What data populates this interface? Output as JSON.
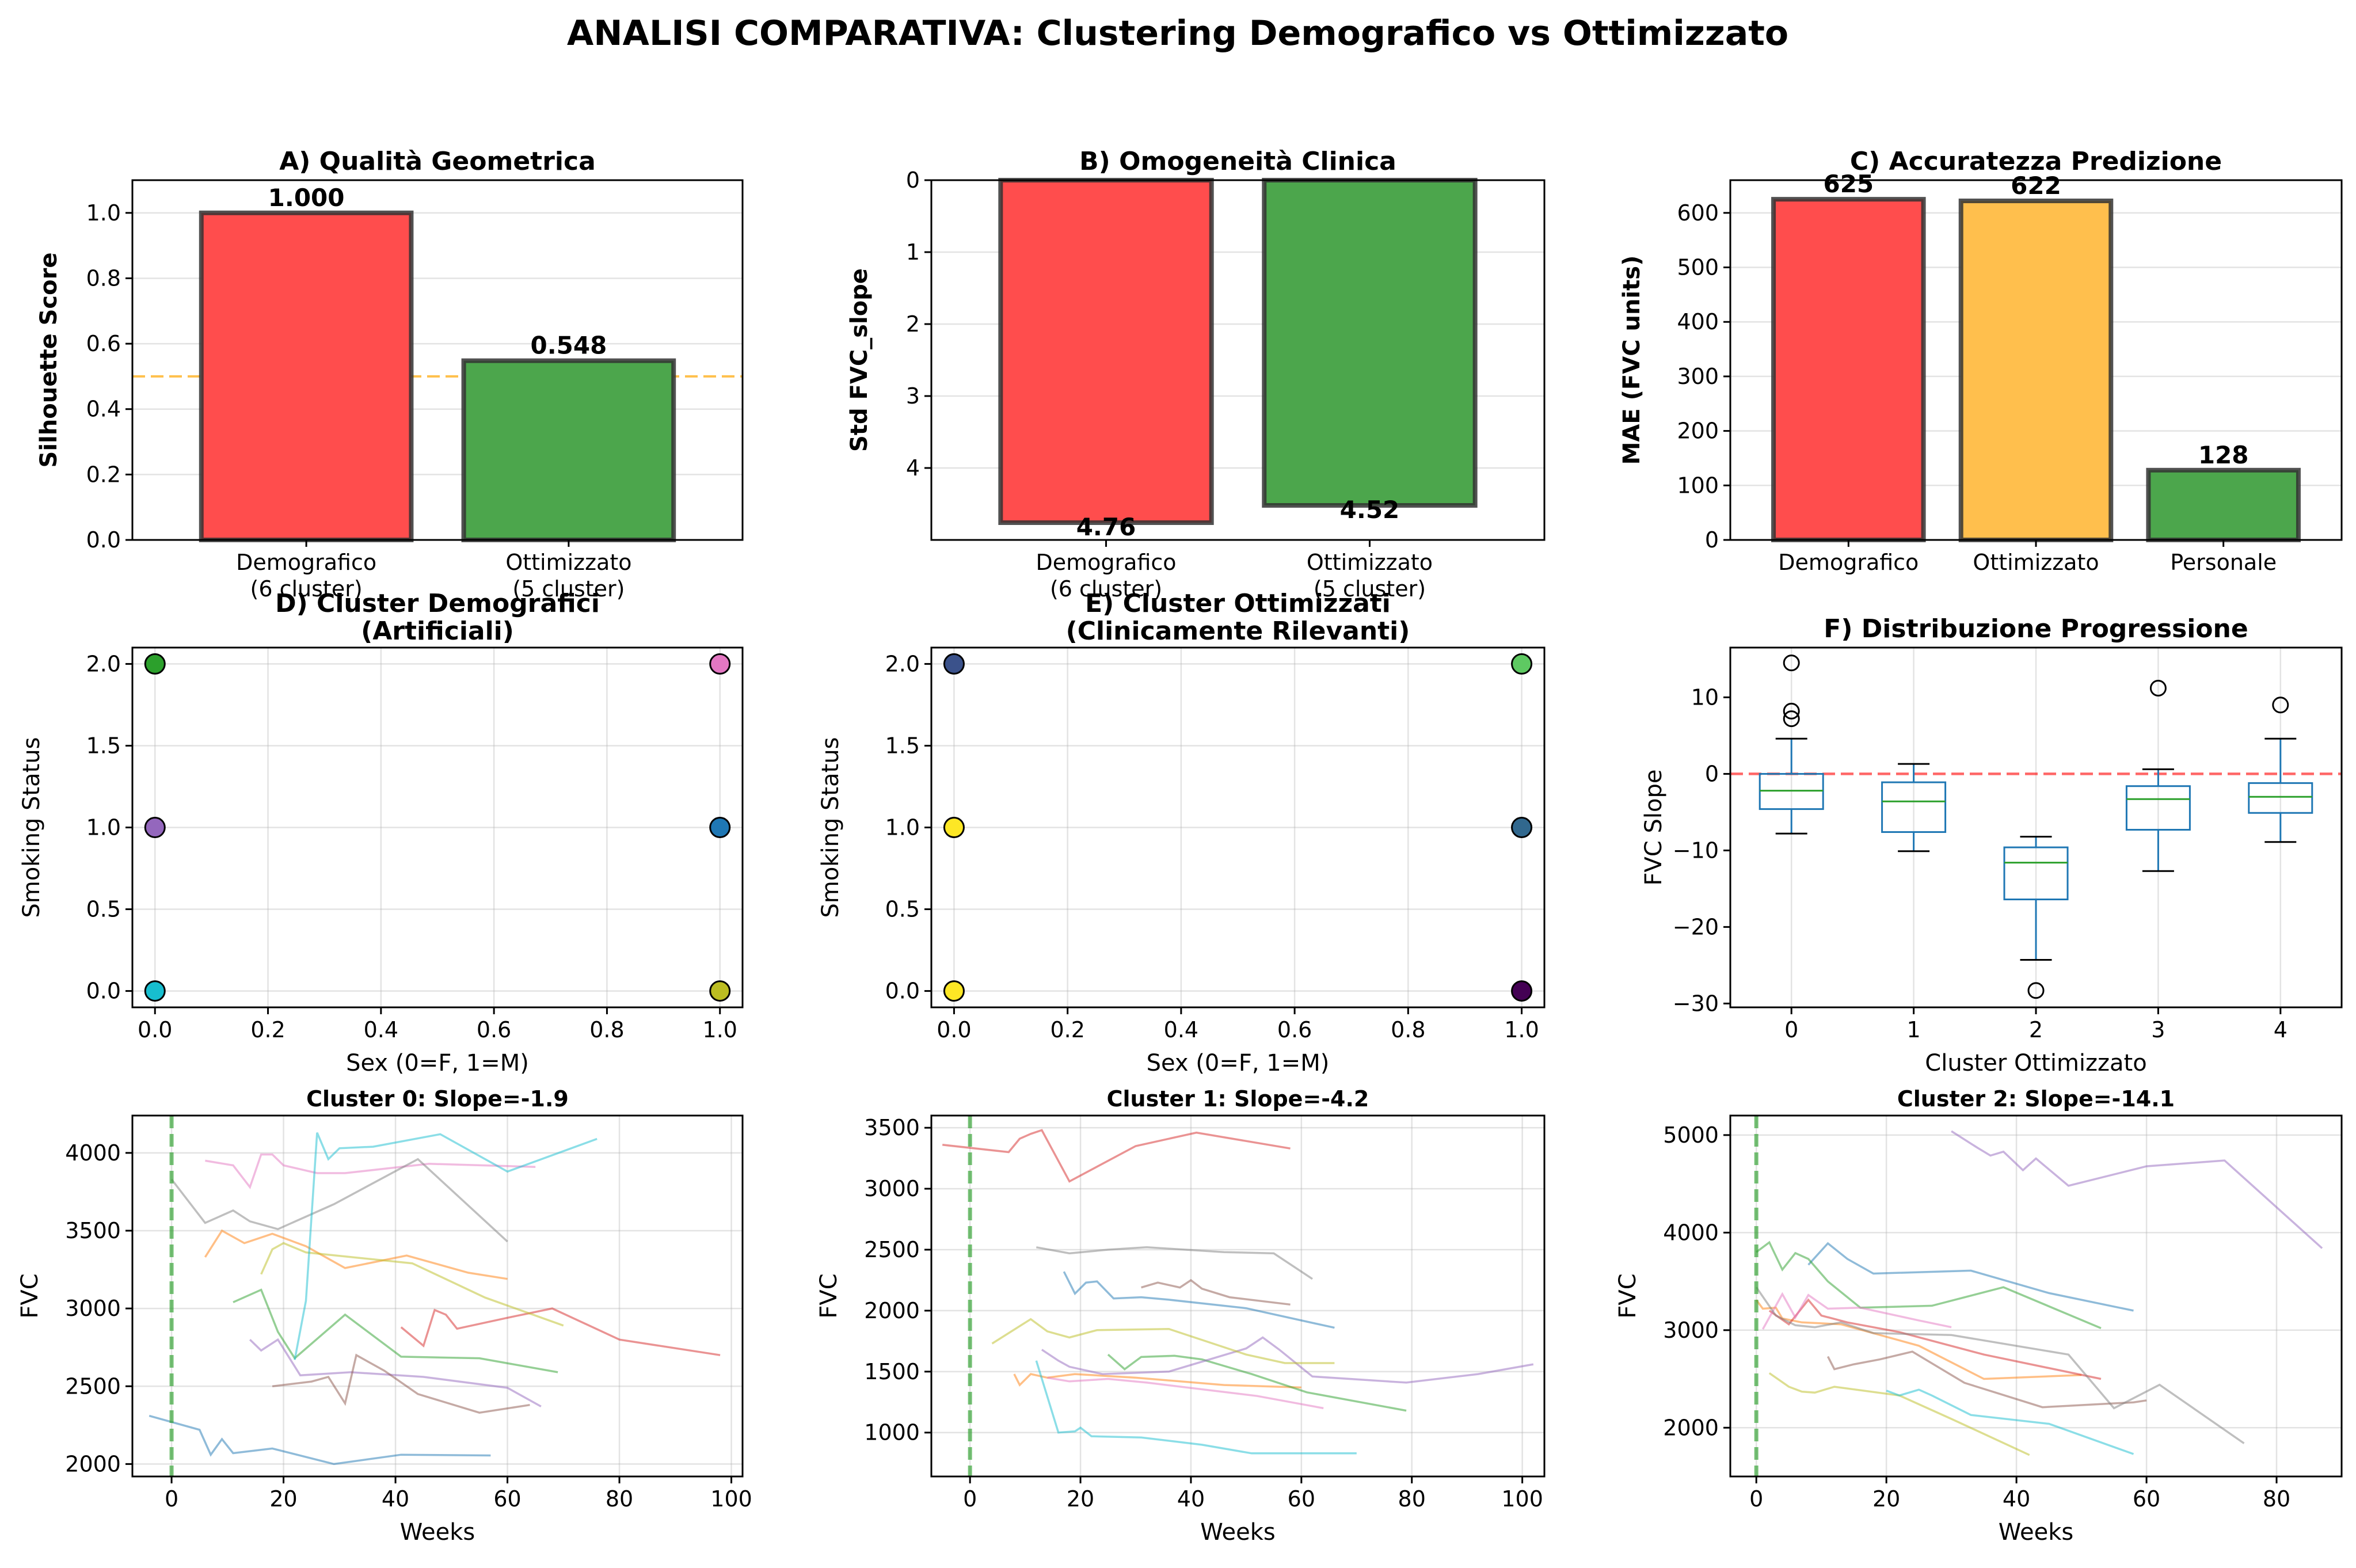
{
  "suptitle": "ANALISI COMPARATIVA: Clustering Demografico vs Ottimizzato",
  "colors": {
    "red": "#ff4d4d",
    "green": "#4ca64c",
    "orange": "#ffbf4d",
    "refline_orange": "#ffa500",
    "refline_red": "#ff0000",
    "trace_green": "#2ca02c",
    "box": "#1f77b4",
    "median": "#2ca02c"
  },
  "chart_data": [
    {
      "id": "A",
      "type": "bar",
      "title": "A) Qualità Geometrica",
      "ylabel": "Silhouette Score",
      "categories": [
        "Demografico\n(6 cluster)",
        "Ottimizzato\n(5 cluster)"
      ],
      "values": [
        1.0,
        0.548
      ],
      "value_labels": [
        "1.000",
        "0.548"
      ],
      "colors": [
        "#ff4d4d",
        "#4ca64c"
      ],
      "ylim": [
        0,
        1.1
      ],
      "yticks": [
        "0.0",
        "0.2",
        "0.4",
        "0.6",
        "0.8",
        "1.0"
      ],
      "reference_line": 0.5,
      "grid": "y"
    },
    {
      "id": "B",
      "type": "bar",
      "title": "B) Omogeneità Clinica",
      "ylabel": "Std FVC_slope",
      "categories": [
        "Demografico\n(6 cluster)",
        "Ottimizzato\n(5 cluster)"
      ],
      "values": [
        4.76,
        4.52
      ],
      "value_labels": [
        "4.76",
        "4.52"
      ],
      "colors": [
        "#ff4d4d",
        "#4ca64c"
      ],
      "ylim": [
        0,
        5
      ],
      "yaxis_inverted": true,
      "yticks": [
        "0",
        "1",
        "2",
        "3",
        "4"
      ],
      "grid": "y"
    },
    {
      "id": "C",
      "type": "bar",
      "title": "C) Accuratezza Predizione",
      "ylabel": "MAE (FVC units)",
      "categories": [
        "Demografico",
        "Ottimizzato",
        "Personale"
      ],
      "values": [
        625,
        622,
        128
      ],
      "value_labels": [
        "625",
        "622",
        "128"
      ],
      "colors": [
        "#ff4d4d",
        "#ffbf4d",
        "#4ca64c"
      ],
      "ylim": [
        0,
        660
      ],
      "yticks": [
        "0",
        "100",
        "200",
        "300",
        "400",
        "500",
        "600"
      ],
      "grid": "y"
    },
    {
      "id": "D",
      "type": "scatter",
      "title": "D) Cluster Demografici\n(Artificiali)",
      "xlabel": "Sex (0=F, 1=M)",
      "ylabel": "Smoking Status",
      "xlim": [
        -0.04,
        1.04
      ],
      "ylim": [
        -0.1,
        2.1
      ],
      "xticks": [
        "0.0",
        "0.2",
        "0.4",
        "0.6",
        "0.8",
        "1.0"
      ],
      "yticks": [
        "0.0",
        "0.5",
        "1.0",
        "1.5",
        "2.0"
      ],
      "points": [
        {
          "x": 0,
          "y": 2,
          "color": "#2ca02c"
        },
        {
          "x": 0,
          "y": 1,
          "color": "#9467bd"
        },
        {
          "x": 0,
          "y": 0,
          "color": "#17becf"
        },
        {
          "x": 1,
          "y": 2,
          "color": "#e377c2"
        },
        {
          "x": 1,
          "y": 1,
          "color": "#1f77b4"
        },
        {
          "x": 1,
          "y": 0,
          "color": "#bcbd22"
        }
      ],
      "grid": "both"
    },
    {
      "id": "E",
      "type": "scatter",
      "title": "E) Cluster Ottimizzati\n(Clinicamente Rilevanti)",
      "xlabel": "Sex (0=F, 1=M)",
      "ylabel": "Smoking Status",
      "xlim": [
        -0.04,
        1.04
      ],
      "ylim": [
        -0.1,
        2.1
      ],
      "xticks": [
        "0.0",
        "0.2",
        "0.4",
        "0.6",
        "0.8",
        "1.0"
      ],
      "yticks": [
        "0.0",
        "0.5",
        "1.0",
        "1.5",
        "2.0"
      ],
      "points": [
        {
          "x": 0,
          "y": 2,
          "color": "#3b528b"
        },
        {
          "x": 0,
          "y": 1,
          "color": "#fde725"
        },
        {
          "x": 0,
          "y": 0,
          "color": "#fde725"
        },
        {
          "x": 1,
          "y": 2,
          "color": "#5ec962"
        },
        {
          "x": 1,
          "y": 1,
          "color": "#31688e"
        },
        {
          "x": 1,
          "y": 0,
          "color": "#440154"
        }
      ],
      "grid": "both"
    },
    {
      "id": "F",
      "type": "box",
      "title": "F) Distribuzione Progressione",
      "xlabel": "Cluster Ottimizzato",
      "ylabel": "FVC Slope",
      "ylim": [
        -30.5,
        16.5
      ],
      "xticks": [
        "0",
        "1",
        "2",
        "3",
        "4"
      ],
      "yticks": [
        "−30",
        "−20",
        "−10",
        "0",
        "10"
      ],
      "reference_line": 0,
      "boxes": [
        {
          "category": "0",
          "whisker_low": -7.8,
          "q1": -4.6,
          "median": -2.2,
          "q3": 0.0,
          "whisker_high": 4.6,
          "outliers": [
            14.5,
            8.2,
            7.2
          ]
        },
        {
          "category": "1",
          "whisker_low": -10.1,
          "q1": -7.6,
          "median": -3.6,
          "q3": -1.1,
          "whisker_high": 1.3,
          "outliers": []
        },
        {
          "category": "2",
          "whisker_low": -24.3,
          "q1": -16.4,
          "median": -11.6,
          "q3": -9.6,
          "whisker_high": -8.2,
          "outliers": [
            -28.3
          ]
        },
        {
          "category": "3",
          "whisker_low": -12.7,
          "q1": -7.3,
          "median": -3.3,
          "q3": -1.6,
          "whisker_high": 0.6,
          "outliers": [
            11.2
          ]
        },
        {
          "category": "4",
          "whisker_low": -8.9,
          "q1": -5.1,
          "median": -3.0,
          "q3": -1.2,
          "whisker_high": 4.6,
          "outliers": [
            9.0
          ]
        }
      ],
      "grid": "x"
    },
    {
      "id": "G",
      "type": "line",
      "title": "Cluster 0: Slope=-1.9",
      "xlabel": "Weeks",
      "ylabel": "FVC",
      "xlim": [
        -7,
        102
      ],
      "ylim": [
        1920,
        4240
      ],
      "xticks": [
        "0",
        "20",
        "40",
        "60",
        "80",
        "100"
      ],
      "yticks": [
        "2000",
        "2500",
        "3000",
        "3500",
        "4000"
      ],
      "reference_line": 0,
      "series": [
        {
          "color": "#1f77b4",
          "x": [
            -4,
            5,
            7,
            9,
            11,
            18,
            29,
            41,
            57
          ],
          "y": [
            2310,
            2220,
            2060,
            2160,
            2070,
            2100,
            2000,
            2060,
            2055
          ]
        },
        {
          "color": "#ff7f0e",
          "x": [
            6,
            9,
            13,
            18,
            24,
            31,
            42,
            53,
            60
          ],
          "y": [
            3330,
            3500,
            3420,
            3480,
            3400,
            3260,
            3340,
            3230,
            3190
          ]
        },
        {
          "color": "#2ca02c",
          "x": [
            11,
            16,
            19,
            22,
            31,
            41,
            55,
            69
          ],
          "y": [
            3040,
            3120,
            2850,
            2680,
            2960,
            2690,
            2680,
            2590
          ]
        },
        {
          "color": "#d62728",
          "x": [
            41,
            45,
            47,
            49,
            51,
            60,
            68,
            80,
            98
          ],
          "y": [
            2880,
            2760,
            2990,
            2960,
            2870,
            2940,
            3000,
            2800,
            2700
          ]
        },
        {
          "color": "#9467bd",
          "x": [
            14,
            16,
            19,
            23,
            32,
            45,
            60,
            66
          ],
          "y": [
            2800,
            2730,
            2800,
            2570,
            2590,
            2560,
            2490,
            2370
          ]
        },
        {
          "color": "#8c564b",
          "x": [
            18,
            25,
            28,
            31,
            33,
            38,
            44,
            55,
            64
          ],
          "y": [
            2500,
            2530,
            2560,
            2390,
            2700,
            2600,
            2450,
            2330,
            2380
          ]
        },
        {
          "color": "#e377c2",
          "x": [
            6,
            11,
            14,
            16,
            18,
            20,
            26,
            31,
            46,
            65
          ],
          "y": [
            3950,
            3920,
            3780,
            3990,
            3990,
            3920,
            3870,
            3870,
            3930,
            3910
          ]
        },
        {
          "color": "#7f7f7f",
          "x": [
            0,
            6,
            11,
            14,
            19,
            29,
            44,
            60
          ],
          "y": [
            3830,
            3550,
            3630,
            3560,
            3510,
            3670,
            3960,
            3430
          ]
        },
        {
          "color": "#bcbd22",
          "x": [
            16,
            18,
            20,
            24,
            43,
            56,
            70
          ],
          "y": [
            3220,
            3380,
            3420,
            3360,
            3290,
            3070,
            2890
          ]
        },
        {
          "color": "#17becf",
          "x": [
            22,
            24,
            26,
            28,
            30,
            36,
            48,
            60,
            76
          ],
          "y": [
            2670,
            3050,
            4130,
            3960,
            4030,
            4040,
            4120,
            3880,
            4090
          ]
        }
      ],
      "grid": "both"
    },
    {
      "id": "H",
      "type": "line",
      "title": "Cluster 1: Slope=-4.2",
      "xlabel": "Weeks",
      "ylabel": "FVC",
      "xlim": [
        -7,
        104
      ],
      "ylim": [
        640,
        3600
      ],
      "xticks": [
        "0",
        "20",
        "40",
        "60",
        "80",
        "100"
      ],
      "yticks": [
        "1000",
        "1500",
        "2000",
        "2500",
        "3000",
        "3500"
      ],
      "reference_line": 0,
      "series": [
        {
          "color": "#1f77b4",
          "x": [
            17,
            19,
            21,
            23,
            26,
            31,
            36,
            50,
            66
          ],
          "y": [
            2320,
            2140,
            2230,
            2240,
            2100,
            2110,
            2090,
            2020,
            1860
          ]
        },
        {
          "color": "#ff7f0e",
          "x": [
            8,
            9,
            11,
            14,
            19,
            30,
            46,
            60
          ],
          "y": [
            1480,
            1390,
            1480,
            1450,
            1480,
            1450,
            1390,
            1370
          ]
        },
        {
          "color": "#2ca02c",
          "x": [
            25,
            28,
            31,
            37,
            42,
            51,
            61,
            79
          ],
          "y": [
            1640,
            1520,
            1620,
            1630,
            1600,
            1480,
            1330,
            1180
          ]
        },
        {
          "color": "#d62728",
          "x": [
            -5,
            7,
            9,
            11,
            13,
            18,
            30,
            41,
            58
          ],
          "y": [
            3360,
            3300,
            3410,
            3450,
            3480,
            3060,
            3350,
            3460,
            3330
          ]
        },
        {
          "color": "#9467bd",
          "x": [
            13,
            16,
            18,
            24,
            36,
            50,
            53,
            56,
            62,
            79,
            92,
            102
          ],
          "y": [
            1680,
            1590,
            1540,
            1480,
            1500,
            1690,
            1780,
            1680,
            1460,
            1410,
            1480,
            1560
          ]
        },
        {
          "color": "#8c564b",
          "x": [
            31,
            34,
            38,
            40,
            42,
            47,
            58
          ],
          "y": [
            2190,
            2230,
            2190,
            2250,
            2180,
            2110,
            2050
          ]
        },
        {
          "color": "#e377c2",
          "x": [
            14,
            18,
            25,
            32,
            52,
            64
          ],
          "y": [
            1450,
            1420,
            1440,
            1410,
            1300,
            1200
          ]
        },
        {
          "color": "#7f7f7f",
          "x": [
            12,
            18,
            25,
            32,
            46,
            55,
            62
          ],
          "y": [
            2520,
            2470,
            2500,
            2520,
            2480,
            2470,
            2260
          ]
        },
        {
          "color": "#bcbd22",
          "x": [
            4,
            11,
            14,
            18,
            23,
            36,
            50,
            57,
            66
          ],
          "y": [
            1730,
            1930,
            1830,
            1780,
            1840,
            1850,
            1640,
            1570,
            1570
          ]
        },
        {
          "color": "#17becf",
          "x": [
            12,
            16,
            19,
            20,
            22,
            31,
            42,
            51,
            70
          ],
          "y": [
            1590,
            1000,
            1010,
            1040,
            970,
            960,
            900,
            830,
            830
          ]
        }
      ],
      "grid": "both"
    },
    {
      "id": "I",
      "type": "line",
      "title": "Cluster 2: Slope=-14.1",
      "xlabel": "Weeks",
      "ylabel": "FVC",
      "xlim": [
        -4,
        90
      ],
      "ylim": [
        1500,
        5200
      ],
      "xticks": [
        "0",
        "20",
        "40",
        "60",
        "80"
      ],
      "yticks": [
        "2000",
        "3000",
        "4000",
        "5000"
      ],
      "reference_line": 0,
      "series": [
        {
          "color": "#1f77b4",
          "x": [
            8,
            11,
            14,
            18,
            33,
            45,
            58
          ],
          "y": [
            3670,
            3890,
            3730,
            3580,
            3610,
            3380,
            3200
          ]
        },
        {
          "color": "#ff7f0e",
          "x": [
            0,
            1,
            3,
            4,
            7,
            13,
            25,
            35,
            50
          ],
          "y": [
            3310,
            3220,
            3230,
            3120,
            3080,
            3060,
            2840,
            2500,
            2540
          ]
        },
        {
          "color": "#2ca02c",
          "x": [
            0,
            2,
            4,
            6,
            8,
            11,
            16,
            27,
            38,
            53
          ],
          "y": [
            3800,
            3900,
            3620,
            3790,
            3730,
            3500,
            3230,
            3250,
            3440,
            3020
          ]
        },
        {
          "color": "#d62728",
          "x": [
            2,
            5,
            8,
            10,
            14,
            22,
            35,
            53
          ],
          "y": [
            3200,
            3060,
            3310,
            3150,
            3080,
            2980,
            2750,
            2500
          ]
        },
        {
          "color": "#9467bd",
          "x": [
            30,
            34,
            36,
            38,
            41,
            43,
            48,
            60,
            72,
            87
          ],
          "y": [
            5040,
            4870,
            4790,
            4830,
            4640,
            4760,
            4480,
            4680,
            4740,
            3840
          ]
        },
        {
          "color": "#8c564b",
          "x": [
            11,
            12,
            15,
            19,
            24,
            32,
            44,
            58,
            60
          ],
          "y": [
            2730,
            2600,
            2650,
            2700,
            2780,
            2460,
            2210,
            2260,
            2280
          ]
        },
        {
          "color": "#e377c2",
          "x": [
            1,
            4,
            6,
            8,
            11,
            16,
            25,
            30
          ],
          "y": [
            3010,
            3370,
            3130,
            3360,
            3220,
            3230,
            3100,
            3030
          ]
        },
        {
          "color": "#7f7f7f",
          "x": [
            0,
            3,
            6,
            9,
            13,
            18,
            30,
            48,
            55,
            62,
            75
          ],
          "y": [
            3440,
            3150,
            3050,
            3030,
            3080,
            2970,
            2950,
            2750,
            2200,
            2440,
            1840
          ]
        },
        {
          "color": "#bcbd22",
          "x": [
            2,
            5,
            7,
            9,
            12,
            22,
            30,
            42
          ],
          "y": [
            2560,
            2420,
            2370,
            2360,
            2420,
            2330,
            2090,
            1720
          ]
        },
        {
          "color": "#17becf",
          "x": [
            20,
            22,
            25,
            27,
            33,
            45,
            58
          ],
          "y": [
            2380,
            2330,
            2390,
            2330,
            2130,
            2040,
            1730
          ]
        }
      ],
      "grid": "both"
    }
  ]
}
